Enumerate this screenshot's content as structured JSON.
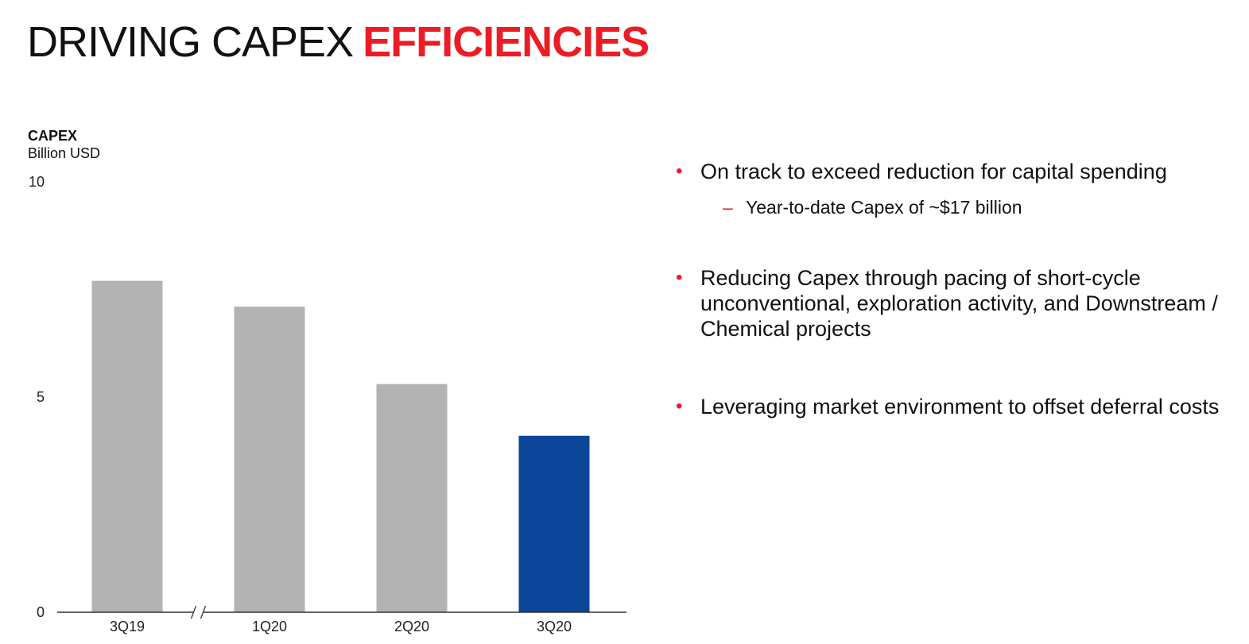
{
  "title": {
    "normal": "DRIVING CAPEX",
    "accent": "EFFICIENCIES"
  },
  "colors": {
    "accent": "#ED1C24",
    "bar_gray": "#B3B3B3",
    "bar_blue": "#0B4599",
    "axis": "#333333"
  },
  "chart_data": {
    "type": "bar",
    "title": "CAPEX",
    "ylabel": "Billion USD",
    "categories": [
      "3Q19",
      "1Q20",
      "2Q20",
      "3Q20"
    ],
    "values": [
      7.7,
      7.1,
      5.3,
      4.1
    ],
    "ylim": [
      0,
      10
    ],
    "yticks": [
      "0",
      "5",
      "10"
    ],
    "grid": false,
    "axis_break_between": [
      "3Q19",
      "1Q20"
    ],
    "highlight_category": "3Q20"
  },
  "bullets": [
    {
      "text": "On track to exceed reduction for capital spending",
      "sub": "Year-to-date Capex of ~$17 billion"
    },
    {
      "text": "Reducing Capex through pacing of short-cycle unconventional, exploration activity, and Downstream / Chemical projects"
    },
    {
      "text": "Leveraging market environment to offset deferral costs"
    }
  ],
  "glyphs": {
    "bullet": "•",
    "sub_marker": "–"
  }
}
